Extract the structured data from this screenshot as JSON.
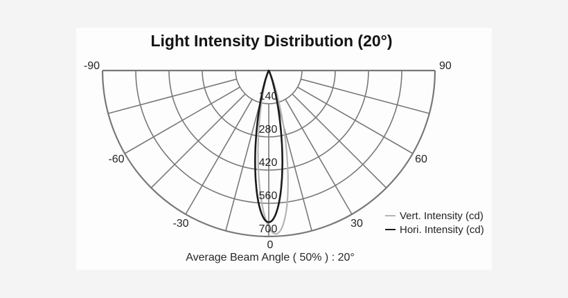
{
  "title": "Light Intensity Distribution (20°)",
  "caption": "Average Beam Angle ( 50% ) : 20°",
  "colors": {
    "background": "#f4f4f5",
    "panel": "#fdfdfe",
    "grid": "#787878",
    "text": "#232323"
  },
  "chart_data": {
    "type": "line",
    "subtype": "polar-semicircle-down",
    "title": "Light Intensity Distribution (20°)",
    "radial_unit": "cd",
    "radial_max": 700,
    "radial_ticks": [
      140,
      280,
      420,
      560,
      700
    ],
    "angle_grid_deg": [
      -90,
      -75,
      -60,
      -45,
      -30,
      -15,
      0,
      15,
      30,
      45,
      60,
      75,
      90
    ],
    "angle_labels": [
      "-90",
      "-60",
      "-30",
      "0",
      "30",
      "60",
      "90"
    ],
    "angle_label_values": [
      -90,
      -60,
      -30,
      0,
      30,
      60,
      90
    ],
    "grid_on": true,
    "legend_position": "lower-right",
    "beam_angle_50pct_deg": 20,
    "series": [
      {
        "name": "Vert. Intensity (cd)",
        "color": "#b4b4b4",
        "peak_cd": 690,
        "tilt_deg": 2.5,
        "sigma_deg": 8.5,
        "samples": {
          "angles_deg": [
            -30,
            -25,
            -20,
            -15,
            -10,
            -5,
            0,
            5,
            10,
            15,
            20,
            25,
            30
          ],
          "intensity_cd": [
            1,
            4,
            21,
            83,
            234,
            467,
            661,
            661,
            467,
            234,
            83,
            21,
            4
          ]
        }
      },
      {
        "name": "Hori. Intensity (cd)",
        "color": "#1a1a1a",
        "peak_cd": 640,
        "tilt_deg": 0,
        "sigma_deg": 8.5,
        "samples": {
          "angles_deg": [
            -30,
            -25,
            -20,
            -15,
            -10,
            -5,
            0,
            5,
            10,
            15,
            20,
            25,
            30
          ],
          "intensity_cd": [
            1,
            8,
            40,
            134,
            320,
            538,
            640,
            538,
            320,
            134,
            40,
            8,
            1
          ]
        }
      }
    ]
  },
  "legend": {
    "items": [
      {
        "label": "Vert. Intensity (cd)"
      },
      {
        "label": "Hori. Intensity (cd)"
      }
    ]
  }
}
